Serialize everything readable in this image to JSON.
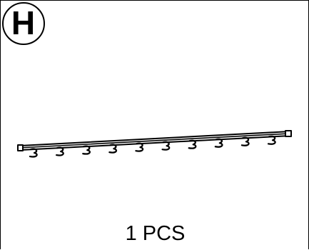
{
  "part": {
    "letter": "H"
  },
  "item": {
    "hook_count": 10,
    "quantity_label": "1 PCS"
  }
}
